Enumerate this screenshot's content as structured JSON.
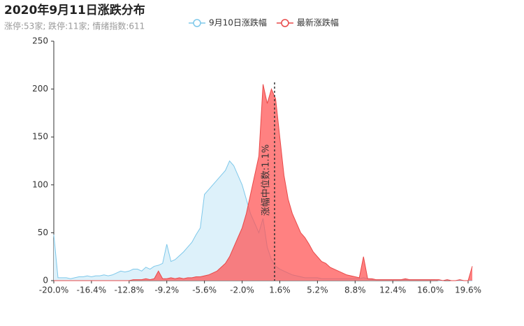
{
  "chart_data": {
    "type": "area",
    "title": "2020年9月11日涨跌分布",
    "subtitle": "涨停:53家; 跌停:11家; 情绪指数:611",
    "x": [
      -20.0,
      -19.6,
      -19.2,
      -18.8,
      -18.4,
      -18.0,
      -17.6,
      -17.2,
      -16.8,
      -16.4,
      -16.0,
      -15.6,
      -15.2,
      -14.8,
      -14.4,
      -14.0,
      -13.6,
      -13.2,
      -12.8,
      -12.4,
      -12.0,
      -11.6,
      -11.2,
      -10.8,
      -10.4,
      -10.0,
      -9.6,
      -9.2,
      -8.8,
      -8.4,
      -8.0,
      -7.6,
      -7.2,
      -6.8,
      -6.4,
      -6.0,
      -5.6,
      -5.2,
      -4.8,
      -4.4,
      -4.0,
      -3.6,
      -3.2,
      -2.8,
      -2.4,
      -2.0,
      -1.6,
      -1.2,
      -0.8,
      -0.4,
      0.0,
      0.4,
      0.8,
      1.2,
      1.6,
      2.0,
      2.4,
      2.8,
      3.2,
      3.6,
      4.0,
      4.4,
      4.8,
      5.2,
      5.6,
      6.0,
      6.4,
      6.8,
      7.2,
      7.6,
      8.0,
      8.4,
      8.8,
      9.2,
      9.6,
      10.0,
      10.4,
      10.8,
      11.2,
      11.6,
      12.0,
      12.4,
      12.8,
      13.2,
      13.6,
      14.0,
      14.4,
      14.8,
      15.2,
      15.6,
      16.0,
      16.4,
      16.8,
      17.2,
      17.6,
      18.0,
      18.4,
      18.8,
      19.2,
      19.6,
      20.0
    ],
    "series": [
      {
        "name": "9月10日涨跌幅",
        "color": "#7ec8ea",
        "fill": "#ddf1fa",
        "values": [
          48,
          3,
          3,
          3,
          2,
          3,
          4,
          4,
          5,
          4,
          5,
          5,
          6,
          5,
          6,
          8,
          10,
          9,
          10,
          12,
          12,
          10,
          14,
          12,
          15,
          16,
          18,
          38,
          20,
          22,
          26,
          30,
          35,
          40,
          48,
          55,
          90,
          95,
          100,
          105,
          110,
          115,
          125,
          120,
          110,
          100,
          85,
          70,
          60,
          50,
          65,
          35,
          22,
          15,
          12,
          10,
          8,
          6,
          5,
          4,
          3,
          3,
          3,
          3,
          2,
          2,
          2,
          2,
          2,
          2,
          2,
          2,
          2,
          2,
          3,
          2,
          1,
          1,
          1,
          1,
          1,
          1,
          1,
          1,
          1,
          1,
          1,
          1,
          1,
          1,
          1,
          1,
          0,
          0,
          1,
          0,
          0,
          0,
          0,
          0,
          0
        ]
      },
      {
        "name": "最新涨跌幅",
        "color": "#e84848",
        "fill": "rgba(255,80,80,0.72)",
        "values": [
          0,
          0,
          0,
          0,
          0,
          0,
          0,
          0,
          0,
          0,
          0,
          0,
          0,
          0,
          0,
          0,
          0,
          0,
          0,
          1,
          1,
          1,
          2,
          1,
          2,
          10,
          2,
          2,
          3,
          2,
          3,
          2,
          3,
          3,
          4,
          4,
          5,
          6,
          8,
          10,
          14,
          18,
          25,
          35,
          45,
          55,
          70,
          90,
          110,
          130,
          205,
          185,
          200,
          190,
          150,
          110,
          85,
          70,
          60,
          50,
          45,
          38,
          30,
          25,
          20,
          18,
          14,
          12,
          10,
          8,
          6,
          5,
          4,
          3,
          25,
          2,
          2,
          1,
          1,
          1,
          1,
          1,
          1,
          1,
          2,
          1,
          1,
          1,
          1,
          1,
          1,
          1,
          1,
          0,
          1,
          0,
          0,
          1,
          0,
          0,
          15
        ]
      }
    ],
    "xlim": [
      -20,
      20
    ],
    "xticks": [
      {
        "value": -20.0,
        "label": "-20.0%"
      },
      {
        "value": -16.4,
        "label": "-16.4%"
      },
      {
        "value": -12.8,
        "label": "-12.8%"
      },
      {
        "value": -9.2,
        "label": "-9.2%"
      },
      {
        "value": -5.6,
        "label": "-5.6%"
      },
      {
        "value": -2.0,
        "label": "-2.0%"
      },
      {
        "value": 1.6,
        "label": "1.6%"
      },
      {
        "value": 5.2,
        "label": "5.2%"
      },
      {
        "value": 8.8,
        "label": "8.8%"
      },
      {
        "value": 12.4,
        "label": "12.4%"
      },
      {
        "value": 16.0,
        "label": "16.0%"
      },
      {
        "value": 19.6,
        "label": "19.6%"
      }
    ],
    "ylim": [
      0,
      250
    ],
    "yticks": [
      0,
      50,
      100,
      150,
      200,
      250
    ],
    "median_line": {
      "value": 1.1,
      "label": "涨幅中位数:1.1%"
    }
  }
}
